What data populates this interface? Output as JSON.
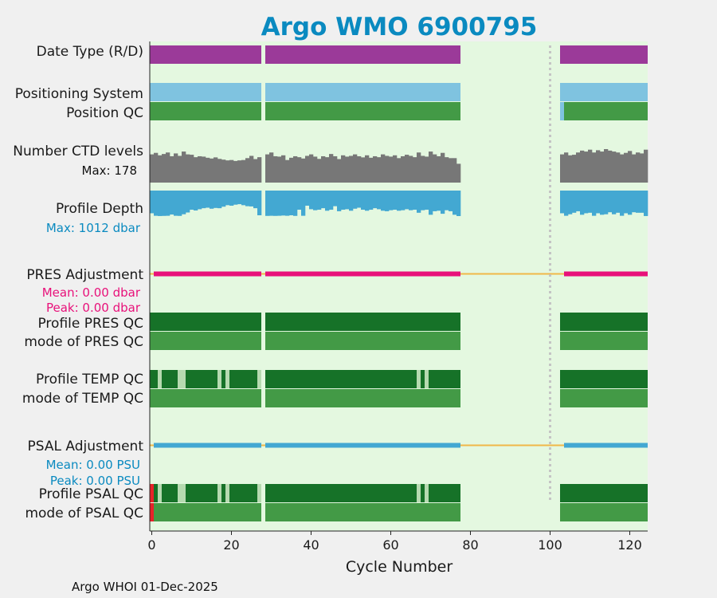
{
  "colors": {
    "background": "#f0f0f0",
    "plot_bg": "#e4f8e0",
    "data_type": "#9b3a99",
    "positioning": "#7fc3e0",
    "qc_good": "#439a46",
    "qc_profile_a": "#167228",
    "qc_light": "#b6dab0",
    "qc_bad": "#e8222a",
    "ctd": "#777777",
    "depth": "#43a8d2",
    "pres_adj": "#e8117a",
    "psal_adj": "#43a8d2",
    "adj_base": "#f0b848",
    "title": "#0a8ac0",
    "dotted": "#c4c4c4"
  },
  "chart_data": {
    "type": "bar",
    "title": "Argo WMO 6900795",
    "xlabel": "Cycle Number",
    "xlim": [
      -0.5,
      124.5
    ],
    "xticks": [
      0,
      20,
      40,
      60,
      80,
      100,
      120
    ],
    "footer": "Argo WHOI 01-Dec-2025",
    "dotted_line_at_cycle": 100,
    "cycle_segments": [
      [
        0,
        27
      ],
      [
        29,
        77
      ],
      [
        103,
        124
      ]
    ],
    "rows": {
      "data_type": "Date Type (R/D)",
      "positioning": "Positioning System",
      "position_qc": "Position QC",
      "ctd_levels": "Number CTD levels",
      "ctd_max": "Max: 178",
      "profile_depth": "Profile Depth",
      "depth_max": "Max: 1012 dbar",
      "pres_adjustment": "PRES Adjustment",
      "pres_mean": "Mean: 0.00 dbar",
      "pres_peak": "Peak: 0.00 dbar",
      "profile_pres_qc": "Profile PRES QC",
      "mode_pres_qc": "mode of PRES QC",
      "profile_temp_qc": "Profile TEMP QC",
      "mode_temp_qc": "mode of TEMP QC",
      "psal_adjustment": "PSAL Adjustment",
      "psal_mean": "Mean: 0.00 PSU",
      "psal_peak": "Peak: 0.00 PSU",
      "profile_psal_qc": "Profile PSAL QC",
      "mode_psal_qc": "mode of PSAL QC"
    },
    "ctd_levels_max": 178,
    "ctd_levels": [
      [
        0,
        150
      ],
      [
        1,
        158
      ],
      [
        2,
        145
      ],
      [
        3,
        152
      ],
      [
        4,
        160
      ],
      [
        5,
        140
      ],
      [
        6,
        155
      ],
      [
        7,
        142
      ],
      [
        8,
        165
      ],
      [
        9,
        150
      ],
      [
        10,
        148
      ],
      [
        11,
        135
      ],
      [
        12,
        140
      ],
      [
        13,
        138
      ],
      [
        14,
        132
      ],
      [
        15,
        128
      ],
      [
        16,
        134
      ],
      [
        17,
        126
      ],
      [
        18,
        122
      ],
      [
        19,
        118
      ],
      [
        20,
        120
      ],
      [
        21,
        115
      ],
      [
        22,
        118
      ],
      [
        23,
        120
      ],
      [
        24,
        130
      ],
      [
        25,
        142
      ],
      [
        26,
        125
      ],
      [
        27,
        135
      ],
      [
        29,
        150
      ],
      [
        30,
        160
      ],
      [
        31,
        140
      ],
      [
        32,
        138
      ],
      [
        33,
        145
      ],
      [
        34,
        120
      ],
      [
        35,
        132
      ],
      [
        36,
        140
      ],
      [
        37,
        135
      ],
      [
        38,
        128
      ],
      [
        39,
        142
      ],
      [
        40,
        150
      ],
      [
        41,
        138
      ],
      [
        42,
        126
      ],
      [
        43,
        140
      ],
      [
        44,
        135
      ],
      [
        45,
        152
      ],
      [
        46,
        140
      ],
      [
        47,
        125
      ],
      [
        48,
        145
      ],
      [
        49,
        138
      ],
      [
        50,
        142
      ],
      [
        51,
        150
      ],
      [
        52,
        140
      ],
      [
        53,
        134
      ],
      [
        54,
        145
      ],
      [
        55,
        132
      ],
      [
        56,
        140
      ],
      [
        57,
        135
      ],
      [
        58,
        150
      ],
      [
        59,
        142
      ],
      [
        60,
        138
      ],
      [
        61,
        145
      ],
      [
        62,
        130
      ],
      [
        63,
        140
      ],
      [
        64,
        148
      ],
      [
        65,
        142
      ],
      [
        66,
        135
      ],
      [
        67,
        160
      ],
      [
        68,
        142
      ],
      [
        69,
        138
      ],
      [
        70,
        165
      ],
      [
        71,
        150
      ],
      [
        72,
        140
      ],
      [
        73,
        158
      ],
      [
        74,
        135
      ],
      [
        75,
        130
      ],
      [
        76,
        130
      ],
      [
        77,
        100
      ],
      [
        103,
        150
      ],
      [
        104,
        160
      ],
      [
        105,
        145
      ],
      [
        106,
        148
      ],
      [
        107,
        160
      ],
      [
        108,
        170
      ],
      [
        109,
        165
      ],
      [
        110,
        175
      ],
      [
        111,
        160
      ],
      [
        112,
        172
      ],
      [
        113,
        165
      ],
      [
        114,
        178
      ],
      [
        115,
        170
      ],
      [
        116,
        165
      ],
      [
        117,
        160
      ],
      [
        118,
        150
      ],
      [
        119,
        158
      ],
      [
        120,
        168
      ],
      [
        121,
        150
      ],
      [
        122,
        160
      ],
      [
        123,
        155
      ],
      [
        124,
        175
      ]
    ],
    "depth_max": 1012,
    "profile_depth": [
      [
        0,
        900
      ],
      [
        1,
        1000
      ],
      [
        2,
        1010
      ],
      [
        3,
        1005
      ],
      [
        4,
        1000
      ],
      [
        5,
        950
      ],
      [
        6,
        1000
      ],
      [
        7,
        1005
      ],
      [
        8,
        940
      ],
      [
        9,
        870
      ],
      [
        10,
        760
      ],
      [
        11,
        790
      ],
      [
        12,
        740
      ],
      [
        13,
        700
      ],
      [
        14,
        680
      ],
      [
        15,
        720
      ],
      [
        16,
        690
      ],
      [
        17,
        700
      ],
      [
        18,
        640
      ],
      [
        19,
        580
      ],
      [
        20,
        600
      ],
      [
        21,
        560
      ],
      [
        22,
        540
      ],
      [
        23,
        580
      ],
      [
        24,
        620
      ],
      [
        25,
        630
      ],
      [
        26,
        700
      ],
      [
        27,
        980
      ],
      [
        29,
        1005
      ],
      [
        30,
        1000
      ],
      [
        31,
        1005
      ],
      [
        32,
        1000
      ],
      [
        33,
        990
      ],
      [
        34,
        1000
      ],
      [
        35,
        980
      ],
      [
        36,
        1005
      ],
      [
        37,
        760
      ],
      [
        38,
        1000
      ],
      [
        39,
        600
      ],
      [
        40,
        740
      ],
      [
        41,
        780
      ],
      [
        42,
        760
      ],
      [
        43,
        700
      ],
      [
        44,
        800
      ],
      [
        45,
        760
      ],
      [
        46,
        620
      ],
      [
        47,
        820
      ],
      [
        48,
        760
      ],
      [
        49,
        740
      ],
      [
        50,
        800
      ],
      [
        51,
        720
      ],
      [
        52,
        680
      ],
      [
        53,
        760
      ],
      [
        54,
        800
      ],
      [
        55,
        760
      ],
      [
        56,
        700
      ],
      [
        57,
        740
      ],
      [
        58,
        800
      ],
      [
        59,
        820
      ],
      [
        60,
        780
      ],
      [
        61,
        760
      ],
      [
        62,
        800
      ],
      [
        63,
        780
      ],
      [
        64,
        740
      ],
      [
        65,
        780
      ],
      [
        66,
        760
      ],
      [
        67,
        880
      ],
      [
        68,
        780
      ],
      [
        69,
        760
      ],
      [
        70,
        960
      ],
      [
        71,
        820
      ],
      [
        72,
        800
      ],
      [
        73,
        920
      ],
      [
        74,
        780
      ],
      [
        75,
        820
      ],
      [
        76,
        960
      ],
      [
        77,
        1012
      ],
      [
        103,
        900
      ],
      [
        104,
        1000
      ],
      [
        105,
        940
      ],
      [
        106,
        880
      ],
      [
        107,
        820
      ],
      [
        108,
        960
      ],
      [
        109,
        900
      ],
      [
        110,
        880
      ],
      [
        111,
        1000
      ],
      [
        112,
        900
      ],
      [
        113,
        960
      ],
      [
        114,
        940
      ],
      [
        115,
        860
      ],
      [
        116,
        940
      ],
      [
        117,
        880
      ],
      [
        118,
        1000
      ],
      [
        119,
        900
      ],
      [
        120,
        960
      ],
      [
        121,
        860
      ],
      [
        122,
        880
      ],
      [
        123,
        880
      ],
      [
        124,
        1010
      ]
    ],
    "adjustment_mean": 0.0,
    "adjustment_peak": 0.0,
    "pres_adjustment_segments": [
      [
        1,
        27
      ],
      [
        29,
        77
      ],
      [
        104,
        124
      ]
    ],
    "psal_adjustment_segments": [
      [
        1,
        27
      ],
      [
        29,
        77
      ],
      [
        104,
        124
      ]
    ],
    "position_qc_light_cycles": [
      103
    ],
    "temp_qc_light_cycles": [
      2,
      7,
      8,
      17,
      19,
      27,
      67,
      69
    ],
    "psal_qc_light_cycles": [
      2,
      7,
      8,
      17,
      19,
      27,
      67,
      69
    ],
    "psal_qc_bad_cycles": [
      0
    ],
    "psal_mode_bad_cycles": [
      0
    ]
  }
}
